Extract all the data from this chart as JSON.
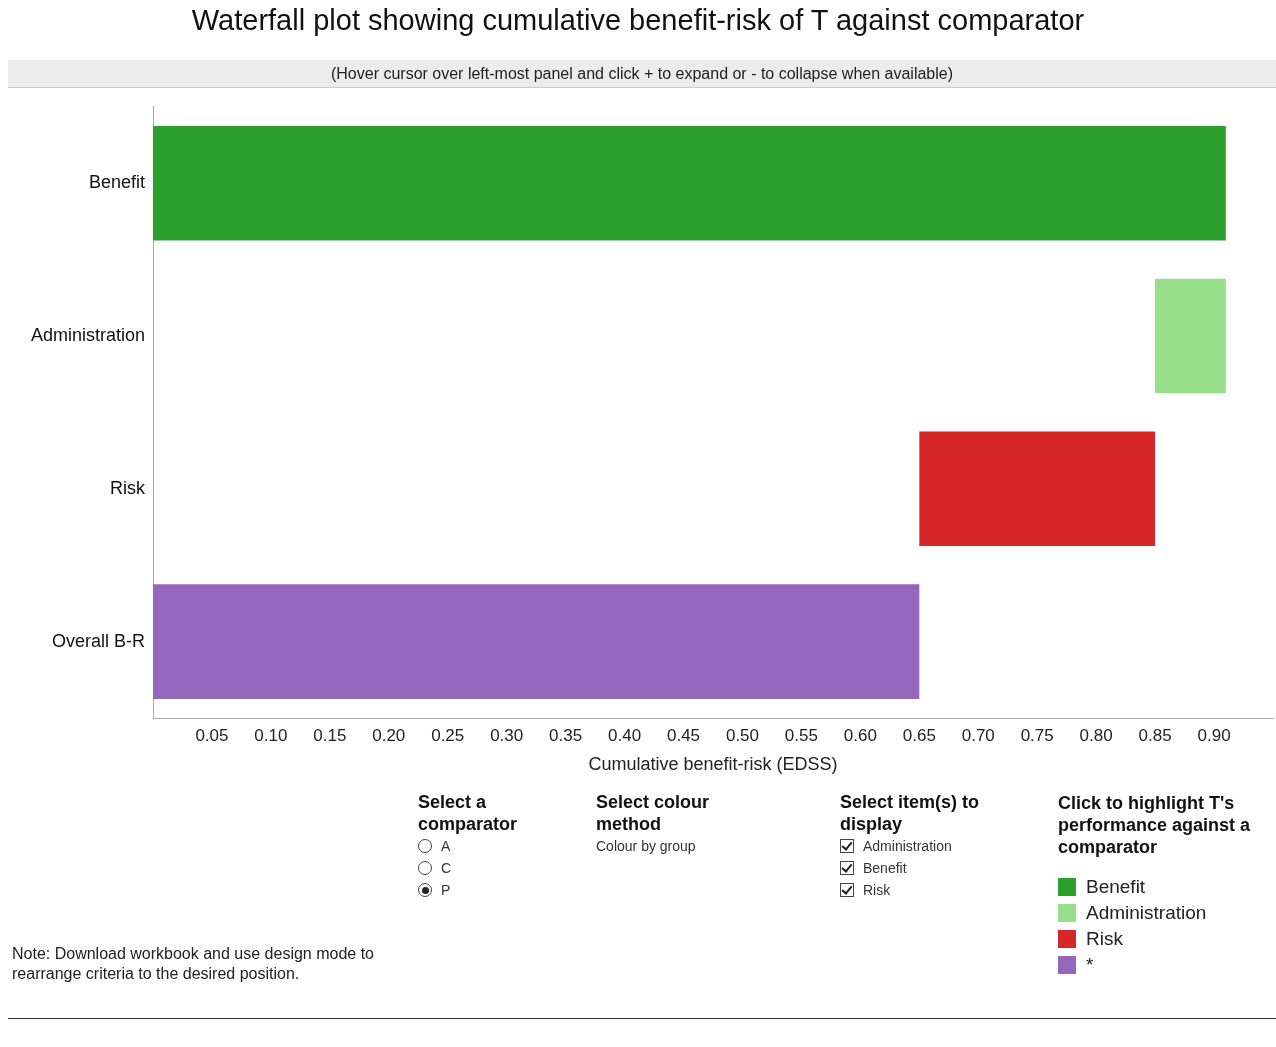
{
  "chart_data": {
    "type": "bar",
    "orientation": "horizontal",
    "title": "Waterfall plot showing cumulative benefit-risk of T against comparator",
    "xlabel": "Cumulative benefit-risk (EDSS)",
    "categories": [
      "Benefit",
      "Administration",
      "Risk",
      "Overall B-R"
    ],
    "series": [
      {
        "name": "Benefit",
        "color": "#2ca02c",
        "base": [
          0,
          null,
          null,
          null
        ],
        "values": [
          0.91,
          null,
          null,
          null
        ]
      },
      {
        "name": "Administration",
        "color": "#98df8a",
        "base": [
          null,
          0.85,
          null,
          null
        ],
        "values": [
          null,
          0.06,
          null,
          null
        ]
      },
      {
        "name": "Risk",
        "color": "#d62728",
        "base": [
          null,
          null,
          0.65,
          null
        ],
        "values": [
          null,
          null,
          0.2,
          null
        ]
      },
      {
        "name": "*",
        "color": "#9467bd",
        "base": [
          null,
          null,
          null,
          0
        ],
        "values": [
          null,
          null,
          null,
          0.65
        ]
      }
    ],
    "xlim": [
      0,
      0.95
    ],
    "xticks": [
      {
        "value": 0.05,
        "label": "0.05"
      },
      {
        "value": 0.1,
        "label": "0.10"
      },
      {
        "value": 0.15,
        "label": "0.15"
      },
      {
        "value": 0.2,
        "label": "0.20"
      },
      {
        "value": 0.25,
        "label": "0.25"
      },
      {
        "value": 0.3,
        "label": "0.30"
      },
      {
        "value": 0.35,
        "label": "0.35"
      },
      {
        "value": 0.4,
        "label": "0.40"
      },
      {
        "value": 0.45,
        "label": "0.45"
      },
      {
        "value": 0.5,
        "label": "0.50"
      },
      {
        "value": 0.55,
        "label": "0.55"
      },
      {
        "value": 0.6,
        "label": "0.60"
      },
      {
        "value": 0.65,
        "label": "0.65"
      },
      {
        "value": 0.7,
        "label": "0.70"
      },
      {
        "value": 0.75,
        "label": "0.75"
      },
      {
        "value": 0.8,
        "label": "0.80"
      },
      {
        "value": 0.85,
        "label": "0.85"
      },
      {
        "value": 0.9,
        "label": "0.90"
      }
    ],
    "grid": false,
    "legend": "bottom right",
    "legend_title": "Click to highlight T's performance against a comparator",
    "annotations": [
      "(Hover cursor over left-most panel and click + to expand or - to collapse when available)",
      "Select a comparator",
      "A",
      "C",
      "P",
      "Select colour method",
      "Colour by group",
      "Select item(s) to display",
      "Administration",
      "Benefit",
      "Risk",
      "Note: Download workbook and use design mode to rearrange criteria to the desired position."
    ]
  }
}
